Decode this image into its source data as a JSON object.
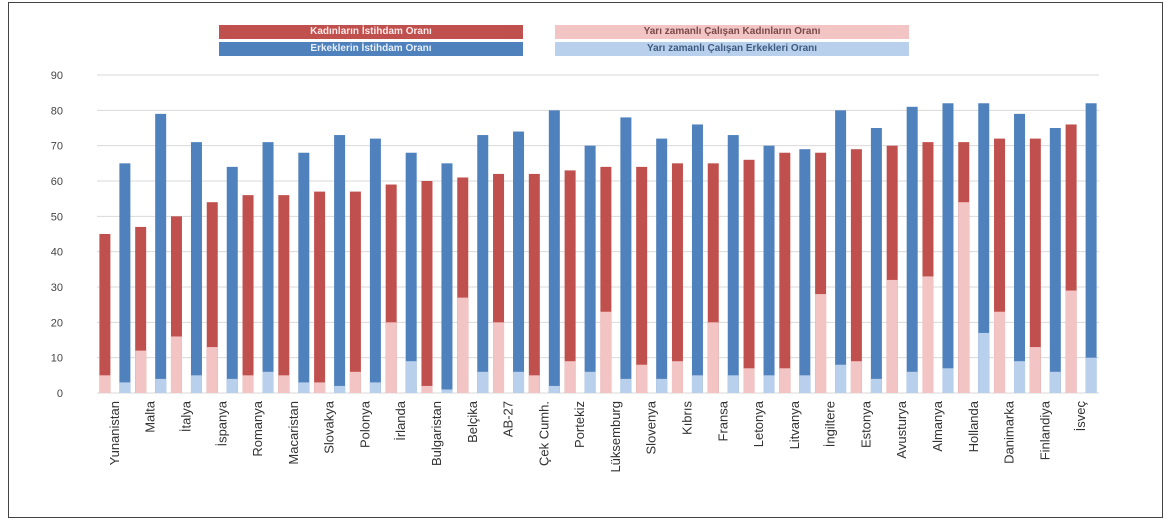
{
  "chart_data": {
    "type": "bar",
    "grid": true,
    "legend_placement": "top-center",
    "ylim": [
      0,
      90
    ],
    "yticks": [
      0,
      10,
      20,
      30,
      40,
      50,
      60,
      70,
      80,
      90
    ],
    "legend": [
      {
        "label": "Kadınların İstihdam Oranı",
        "color": "#c0504d"
      },
      {
        "label": "Erkeklerin İstihdam Oranı",
        "color": "#4f81bd"
      },
      {
        "label": "Yarı zamanlı Çalışan Kadınların Oranı",
        "color": "#f2c4c4"
      },
      {
        "label": "Yarı zamanlı Çalışan Erkekleri Oranı",
        "color": "#b9d0ed"
      }
    ],
    "categories": [
      "Yunanistan",
      "Malta",
      "İtalya",
      "İspanya",
      "Romanya",
      "Macaristan",
      "Slovakya",
      "Polonya",
      "İrlanda",
      "Bulgaristan",
      "Belçika",
      "AB-27",
      "Çek Cumh.",
      "Portekiz",
      "Lüksemburg",
      "Slovenya",
      "Kıbrıs",
      "Fransa",
      "Letonya",
      "Litvanya",
      "İngiltere",
      "Estonya",
      "Avusturya",
      "Almanya",
      "Hollanda",
      "Danimarka",
      "Finlandiya",
      "İsveç"
    ],
    "series": [
      {
        "name": "Kadınların İstihdam Oranı",
        "values": [
          45,
          47,
          50,
          54,
          56,
          56,
          57,
          57,
          59,
          60,
          61,
          62,
          62,
          63,
          64,
          64,
          65,
          65,
          66,
          68,
          68,
          69,
          70,
          71,
          71,
          72,
          72,
          76
        ]
      },
      {
        "name": "Erkeklerin İstihdam Oranı",
        "values": [
          65,
          79,
          71,
          64,
          71,
          68,
          73,
          72,
          68,
          65,
          73,
          74,
          80,
          70,
          78,
          72,
          76,
          73,
          70,
          69,
          80,
          75,
          81,
          82,
          82,
          79,
          75,
          82
        ]
      },
      {
        "name": "Yarı zamanlı Çalışan Kadınların Oranı",
        "values": [
          5,
          12,
          16,
          13,
          5,
          5,
          3,
          6,
          20,
          2,
          27,
          20,
          5,
          9,
          23,
          8,
          9,
          20,
          7,
          7,
          28,
          9,
          32,
          33,
          54,
          23,
          13,
          29
        ]
      },
      {
        "name": "Yarı zamanlı Çalışan Erkekleri Oranı",
        "values": [
          3,
          4,
          5,
          4,
          6,
          3,
          2,
          3,
          9,
          1,
          6,
          6,
          2,
          6,
          4,
          4,
          5,
          5,
          5,
          5,
          8,
          4,
          6,
          7,
          17,
          9,
          6,
          10
        ]
      }
    ]
  }
}
